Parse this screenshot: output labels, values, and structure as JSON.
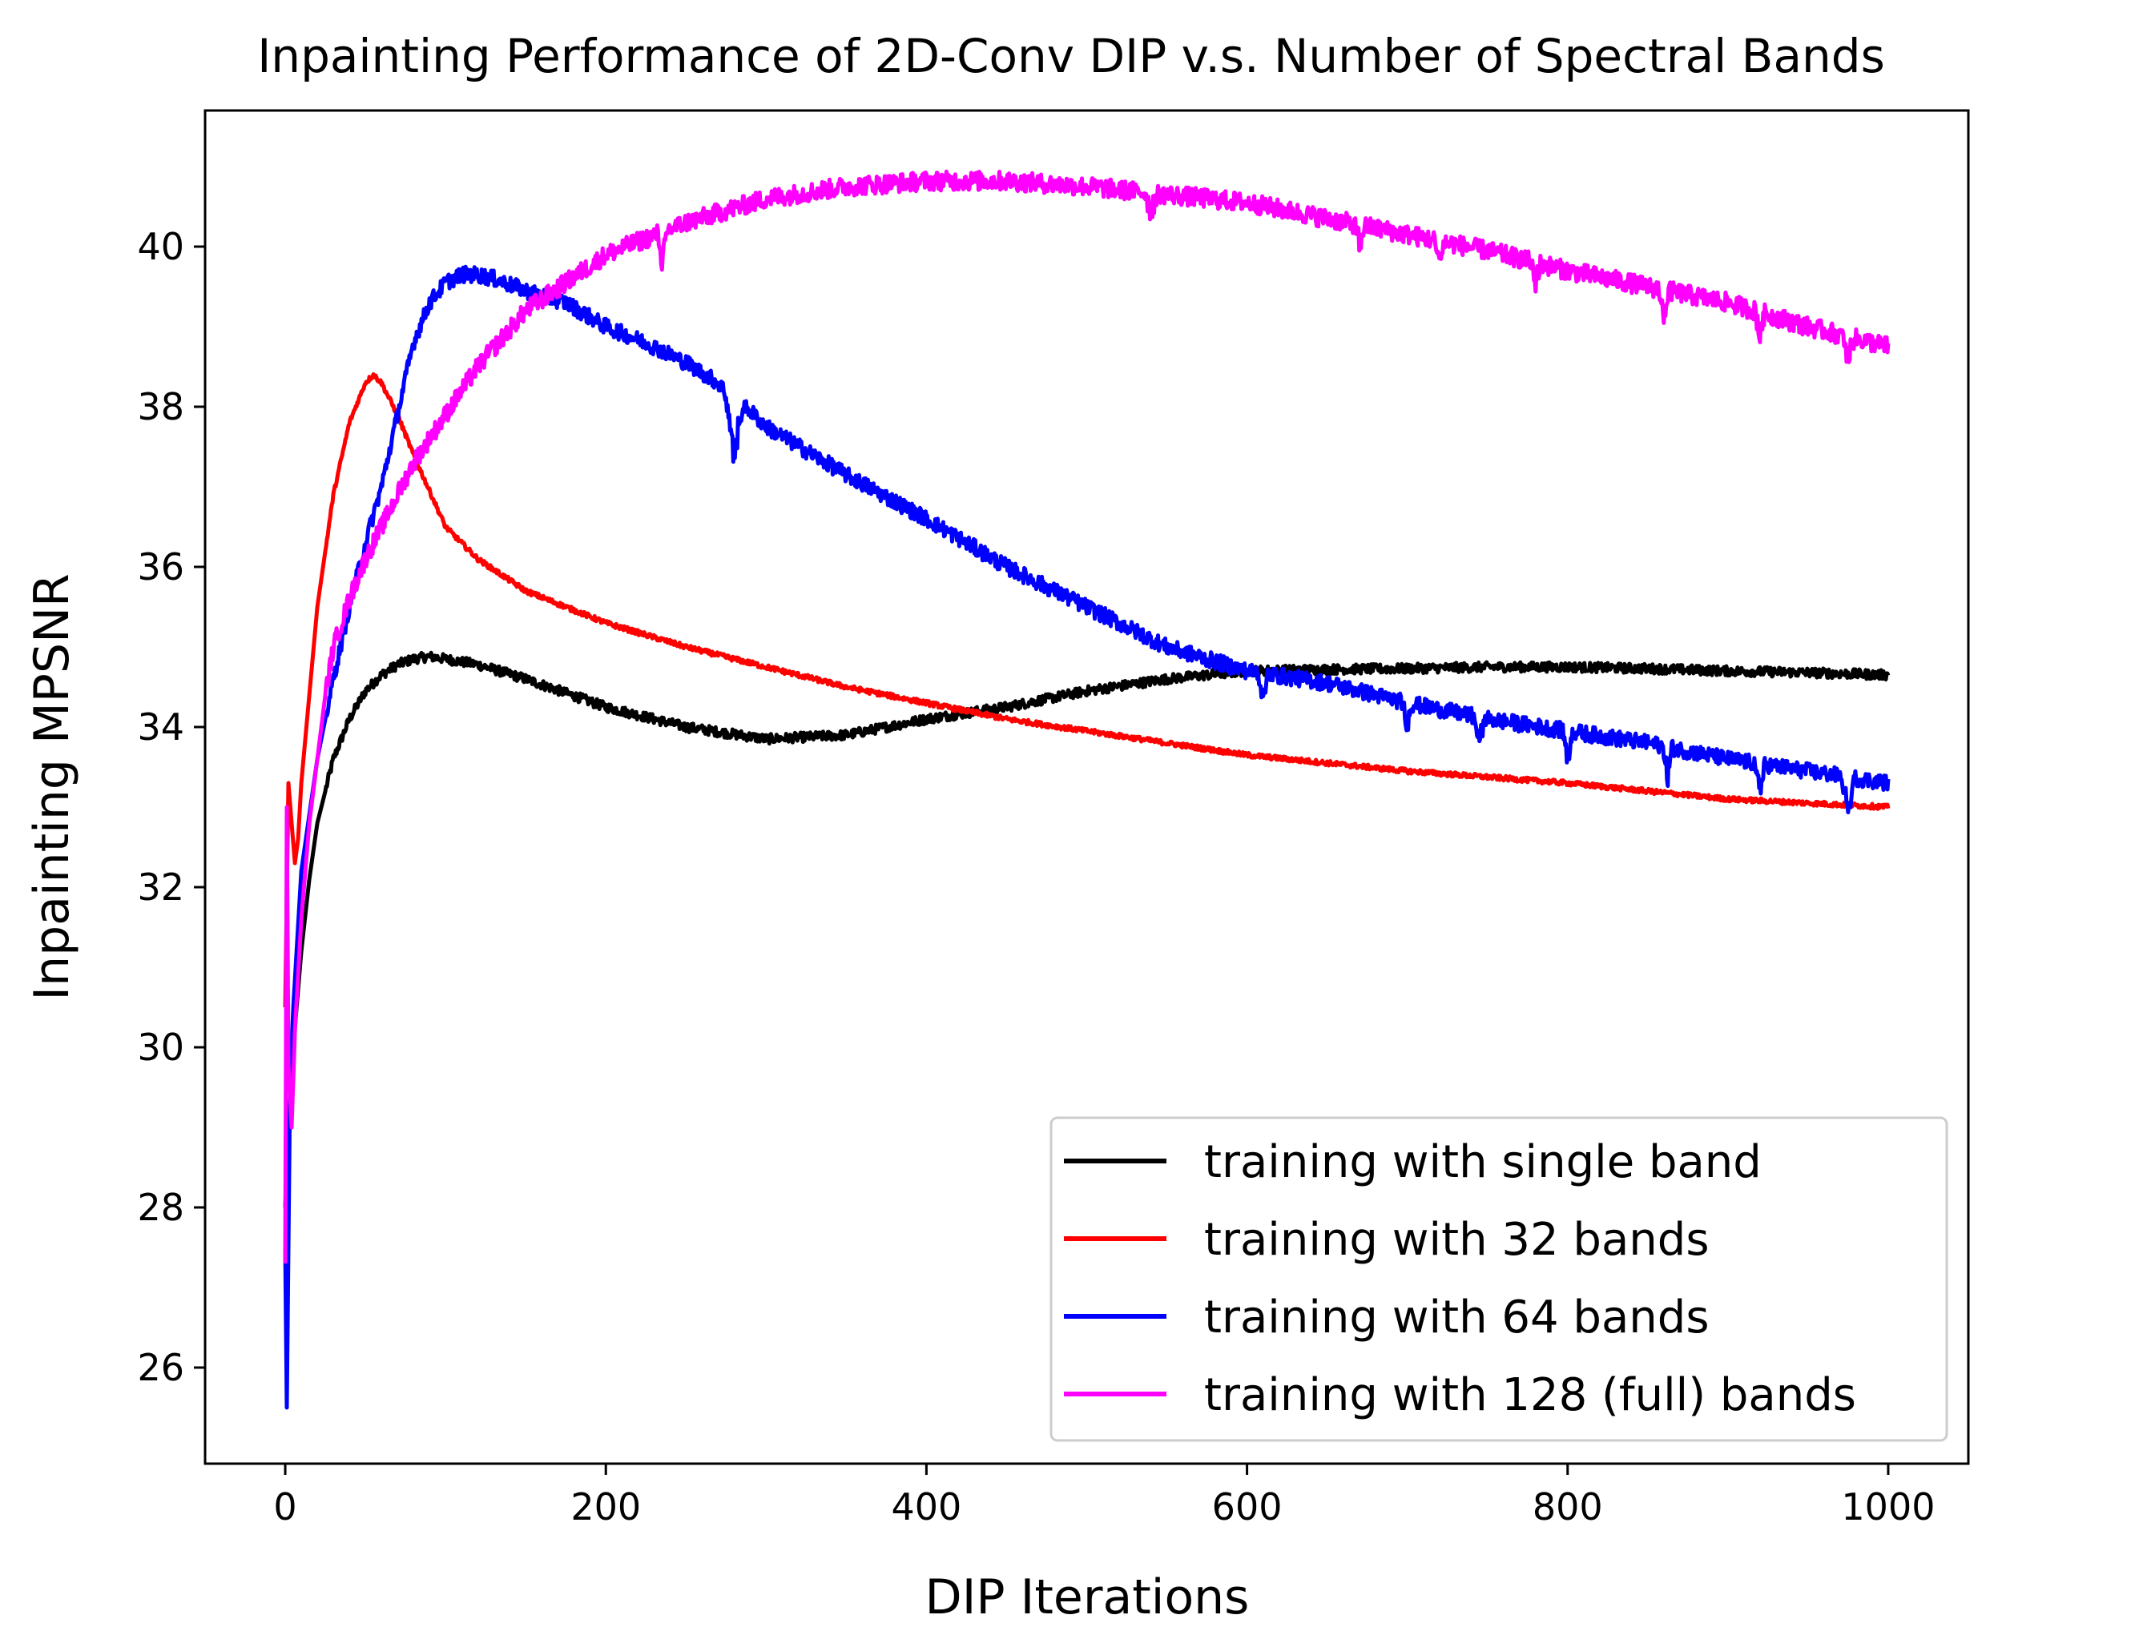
{
  "chart_data": {
    "type": "line",
    "title": "Inpainting Performance of 2D-Conv DIP v.s. Number of Spectral Bands",
    "xlabel": "DIP Iterations",
    "ylabel": "Inpainting MPSNR",
    "xlim": [
      -50,
      1050
    ],
    "ylim": [
      24.8,
      41.7
    ],
    "xticks": [
      0,
      200,
      400,
      600,
      800,
      1000
    ],
    "yticks": [
      26,
      28,
      30,
      32,
      34,
      36,
      38,
      40
    ],
    "grid": false,
    "legend_position": "bottom-right",
    "series": [
      {
        "name": "training with single band",
        "color": "#000000",
        "noise": 0.06,
        "x": [
          0,
          2,
          5,
          10,
          15,
          20,
          30,
          40,
          50,
          60,
          70,
          80,
          90,
          100,
          120,
          150,
          200,
          250,
          300,
          350,
          400,
          450,
          500,
          550,
          600,
          650,
          700,
          750,
          800,
          850,
          900,
          950,
          1000
        ],
        "y": [
          28.0,
          29.0,
          30.0,
          31.2,
          32.1,
          32.8,
          33.6,
          34.1,
          34.45,
          34.65,
          34.78,
          34.85,
          34.88,
          34.85,
          34.78,
          34.6,
          34.25,
          34.0,
          33.85,
          33.9,
          34.1,
          34.25,
          34.45,
          34.6,
          34.7,
          34.72,
          34.73,
          34.75,
          34.75,
          34.73,
          34.7,
          34.68,
          34.65
        ]
      },
      {
        "name": "training with 32 bands",
        "color": "#ff0000",
        "noise": 0.03,
        "x": [
          0,
          2,
          4,
          6,
          8,
          10,
          15,
          20,
          30,
          40,
          50,
          55,
          60,
          70,
          80,
          100,
          120,
          150,
          200,
          250,
          300,
          350,
          400,
          450,
          500,
          600,
          700,
          800,
          900,
          1000
        ],
        "y": [
          30.5,
          33.3,
          32.8,
          32.3,
          32.6,
          33.3,
          34.4,
          35.5,
          36.9,
          37.8,
          38.3,
          38.4,
          38.3,
          37.9,
          37.4,
          36.5,
          36.1,
          35.7,
          35.3,
          35.0,
          34.75,
          34.5,
          34.3,
          34.1,
          33.95,
          33.65,
          33.45,
          33.3,
          33.1,
          33.0
        ]
      },
      {
        "name": "training with 64 bands",
        "color": "#0000ff",
        "noise": 0.1,
        "x": [
          0,
          1,
          2,
          3,
          5,
          10,
          20,
          30,
          40,
          50,
          60,
          70,
          80,
          90,
          100,
          110,
          120,
          130,
          150,
          175,
          200,
          225,
          250,
          270,
          280,
          290,
          300,
          350,
          400,
          450,
          500,
          550,
          600,
          650,
          700,
          750,
          800,
          850,
          900,
          950,
          1000
        ],
        "y": [
          27.5,
          25.5,
          27.5,
          29.5,
          30.5,
          32.2,
          33.6,
          34.6,
          35.5,
          36.3,
          37.0,
          37.9,
          38.8,
          39.3,
          39.55,
          39.65,
          39.65,
          39.6,
          39.45,
          39.3,
          39.0,
          38.8,
          38.55,
          38.3,
          38.05,
          37.95,
          37.75,
          37.15,
          36.6,
          36.0,
          35.5,
          35.0,
          34.7,
          34.55,
          34.3,
          34.1,
          33.95,
          33.8,
          33.6,
          33.45,
          33.3
        ]
      },
      {
        "name": "training with 128 (full) bands",
        "color": "#ff00ff",
        "noise": 0.12,
        "x": [
          0,
          1,
          2,
          4,
          6,
          10,
          15,
          20,
          25,
          30,
          40,
          50,
          60,
          80,
          100,
          120,
          150,
          200,
          250,
          300,
          350,
          400,
          450,
          500,
          550,
          600,
          650,
          700,
          750,
          800,
          850,
          900,
          950,
          1000
        ],
        "y": [
          27.3,
          33.0,
          29.8,
          29.0,
          30.2,
          31.6,
          32.8,
          33.6,
          34.4,
          35.0,
          35.6,
          36.1,
          36.5,
          37.3,
          37.9,
          38.5,
          39.2,
          39.9,
          40.3,
          40.6,
          40.75,
          40.82,
          40.82,
          40.75,
          40.65,
          40.55,
          40.35,
          40.15,
          39.95,
          39.7,
          39.5,
          39.3,
          39.0,
          38.75
        ]
      }
    ],
    "dips": [
      {
        "series": 2,
        "x": 280,
        "depth": 0.75,
        "width": 6
      },
      {
        "series": 2,
        "x": 610,
        "depth": 0.45,
        "width": 3
      },
      {
        "series": 2,
        "x": 700,
        "depth": 0.35,
        "width": 3
      },
      {
        "series": 2,
        "x": 745,
        "depth": 0.4,
        "width": 3
      },
      {
        "series": 2,
        "x": 800,
        "depth": 0.45,
        "width": 3
      },
      {
        "series": 2,
        "x": 862,
        "depth": 0.5,
        "width": 3
      },
      {
        "series": 2,
        "x": 920,
        "depth": 0.45,
        "width": 3
      },
      {
        "series": 2,
        "x": 975,
        "depth": 0.5,
        "width": 4
      },
      {
        "series": 3,
        "x": 235,
        "depth": 0.4,
        "width": 3
      },
      {
        "series": 3,
        "x": 540,
        "depth": 0.35,
        "width": 4
      },
      {
        "series": 3,
        "x": 670,
        "depth": 0.3,
        "width": 3
      },
      {
        "series": 3,
        "x": 720,
        "depth": 0.35,
        "width": 3
      },
      {
        "series": 3,
        "x": 780,
        "depth": 0.35,
        "width": 3
      },
      {
        "series": 3,
        "x": 860,
        "depth": 0.4,
        "width": 3
      },
      {
        "series": 3,
        "x": 920,
        "depth": 0.4,
        "width": 3
      },
      {
        "series": 3,
        "x": 975,
        "depth": 0.45,
        "width": 4
      }
    ]
  }
}
